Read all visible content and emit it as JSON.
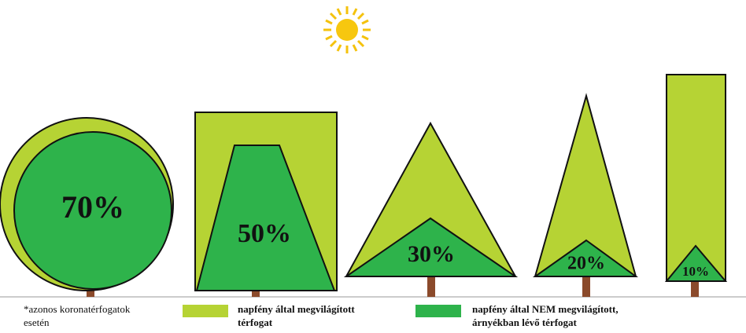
{
  "trees": [
    {
      "label": "70%"
    },
    {
      "label": "50%"
    },
    {
      "label": "30%"
    },
    {
      "label": "20%"
    },
    {
      "label": "10%"
    }
  ],
  "note": [
    "*azonos koronatérfogatok",
    "esetén"
  ],
  "legend": [
    {
      "lines": [
        "napfény által megvilágított",
        "térfogat"
      ]
    },
    {
      "lines": [
        "napfény által NEM megvilágított,",
        "árnyékban lévő térfogat"
      ]
    }
  ]
}
